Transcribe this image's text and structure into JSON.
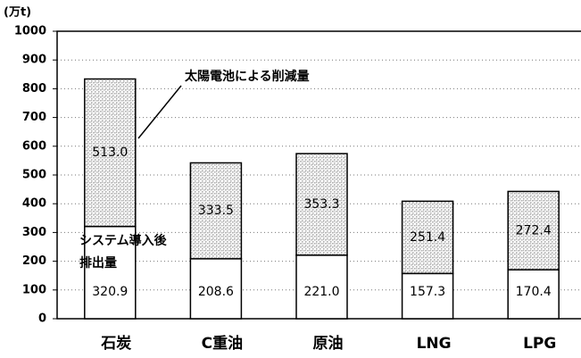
{
  "chart_data": {
    "type": "stacked_bar",
    "y_axis_label": "(万t)",
    "categories": [
      "石炭",
      "C重油",
      "原油",
      "LNG",
      "LPG"
    ],
    "series": [
      {
        "name": "システム導入後排出量",
        "color": "#ffffff",
        "values": [
          320.9,
          208.6,
          221.0,
          157.3,
          170.4
        ],
        "value_labels": [
          "320.9",
          "208.6",
          "221.0",
          "157.3",
          "170.4"
        ]
      },
      {
        "name": "太陽電池による削減量",
        "color": "#a8a8a8",
        "values": [
          513.0,
          333.5,
          353.3,
          251.4,
          272.4
        ],
        "value_labels": [
          "513.0",
          "333.5",
          "353.3",
          "251.4",
          "272.4"
        ]
      }
    ],
    "ylim": [
      0,
      1000
    ],
    "yticks": [
      0,
      100,
      200,
      300,
      400,
      500,
      600,
      700,
      800,
      900,
      1000
    ],
    "grid": true
  }
}
